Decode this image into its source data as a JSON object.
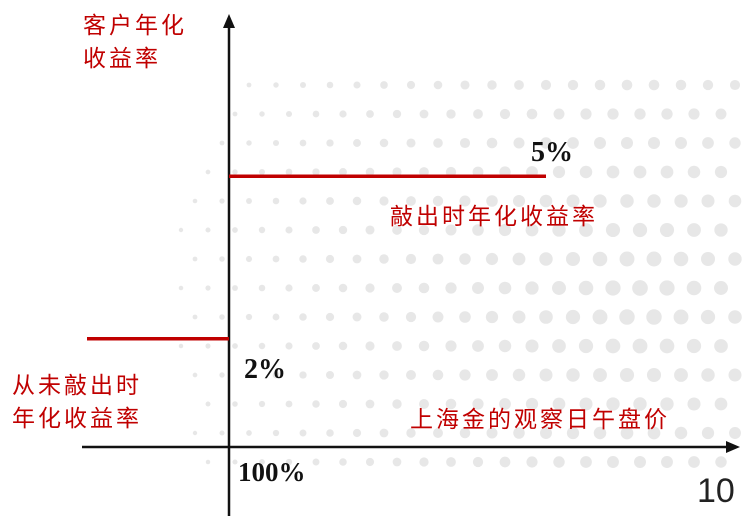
{
  "colors": {
    "accent": "#c00000",
    "axis": "#111111",
    "dots": "#e3e3e3"
  },
  "chart_data": {
    "type": "line",
    "ylabel": "客户年化收益率",
    "xlabel": "上海金的观察日午盘价",
    "x_tick_label": "100%",
    "series": [
      {
        "name": "从未敲出时年化收益率",
        "segment": "below-strike",
        "value_label": "2%",
        "y": 2
      },
      {
        "name": "敲出时年化收益率",
        "segment": "above-strike",
        "value_label": "5%",
        "y": 5
      }
    ],
    "ylim": [
      0,
      7
    ],
    "grid": false
  },
  "labels": {
    "ylabel_line1": "客户年化",
    "ylabel_line2": "收益率",
    "low_line1": "从未敲出时",
    "low_line2": "年化收益率"
  },
  "page_number": "10"
}
